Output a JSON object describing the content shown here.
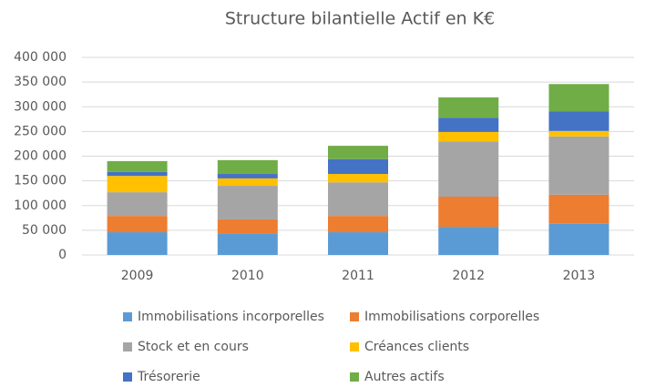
{
  "chart_data": {
    "type": "stacked_bar",
    "title": "Structure bilantielle Actif en K€",
    "categories": [
      "2009",
      "2010",
      "2011",
      "2012",
      "2013"
    ],
    "series": [
      {
        "name": "Immobilisations incorporelles",
        "color": "#5b9bd5",
        "values": [
          46000,
          44000,
          46000,
          57000,
          63000
        ]
      },
      {
        "name": "Immobilisations corporelles",
        "color": "#ed7d31",
        "values": [
          33000,
          28000,
          33000,
          61000,
          59000
        ]
      },
      {
        "name": "Stock et en cours",
        "color": "#a5a5a5",
        "values": [
          48000,
          68000,
          68000,
          112000,
          118000
        ]
      },
      {
        "name": "Créances clients",
        "color": "#ffc000",
        "values": [
          33000,
          15000,
          17000,
          19000,
          11000
        ]
      },
      {
        "name": "Trésorerie",
        "color": "#4472c4",
        "values": [
          8000,
          9000,
          30000,
          29000,
          40000
        ]
      },
      {
        "name": "Autres actifs",
        "color": "#70ad47",
        "values": [
          22000,
          28000,
          27000,
          41000,
          55000
        ]
      }
    ],
    "ylim": [
      0,
      400000
    ],
    "yticks": [
      0,
      {
        "value": 50000,
        "label": "50 000"
      },
      {
        "value": 100000,
        "label": "100 000"
      },
      {
        "value": 150000,
        "label": "150 000"
      },
      {
        "value": 200000,
        "label": "200 000"
      },
      {
        "value": 250000,
        "label": "250 000"
      },
      {
        "value": 300000,
        "label": "300 000"
      },
      {
        "value": 350000,
        "label": "350 000"
      },
      {
        "value": 400000,
        "label": "400 000"
      }
    ],
    "grid": true,
    "legend": "bottom"
  }
}
